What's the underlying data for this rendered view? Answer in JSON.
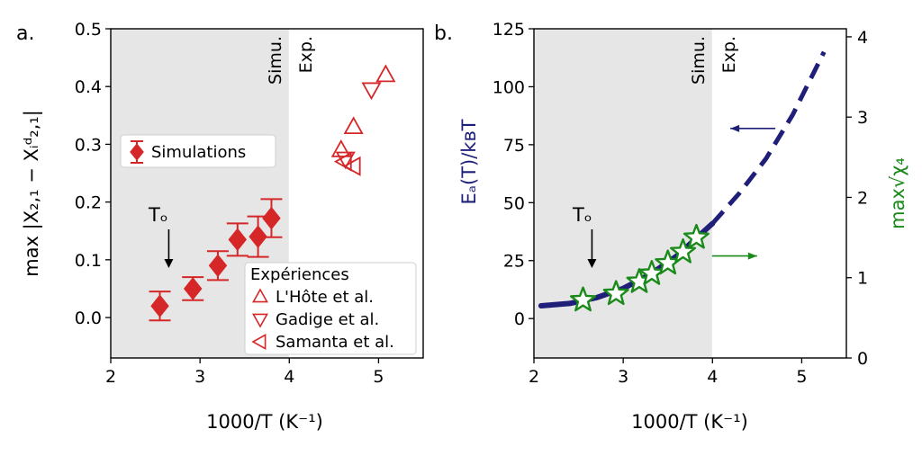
{
  "panels": [
    {
      "label": "a.",
      "xlabel": "1000/T (K⁻¹)",
      "ylabel": "max |X₂,₁ − Xᵢᵈ₂,₁|",
      "region_left": "Simu.",
      "region_right": "Exp.",
      "marker_label": "Tₒ",
      "legend_sim": "Simulations",
      "legend_title": "Expériences",
      "legend_items": [
        "L'Hôte et al.",
        "Gadige et al.",
        "Samanta et al."
      ]
    },
    {
      "label": "b.",
      "xlabel": "1000/T (K⁻¹)",
      "ylabel": "Eₐ(T)/kʙT",
      "ylabel_right": "max√χ₄",
      "region_left": "Simu.",
      "region_right": "Exp.",
      "marker_label": "Tₒ"
    }
  ],
  "colors": {
    "red": "#d62728",
    "navy": "#1f1f7a",
    "green": "#1a8a1a",
    "shade": "#e6e6e6"
  },
  "chart_data": [
    {
      "type": "scatter",
      "xlim": [
        2.0,
        5.5
      ],
      "ylim": [
        -0.07,
        0.5
      ],
      "xticks": [
        2,
        3,
        4,
        5
      ],
      "yticks": [
        0.0,
        0.1,
        0.2,
        0.3,
        0.4,
        0.5
      ],
      "ytick_labels": [
        "0.0",
        "0.1",
        "0.2",
        "0.3",
        "0.4",
        "0.5"
      ],
      "shaded_range": [
        2.0,
        4.0
      ],
      "boundary_x": 4.0,
      "marker_x": 2.65,
      "series": [
        {
          "name": "Simulations",
          "marker": "diamond",
          "x": [
            2.55,
            2.92,
            3.2,
            3.42,
            3.65,
            3.8
          ],
          "y": [
            0.02,
            0.05,
            0.09,
            0.135,
            0.14,
            0.172
          ],
          "err": [
            0.025,
            0.02,
            0.025,
            0.028,
            0.035,
            0.033
          ]
        },
        {
          "name": "L'Hôte et al.",
          "marker": "triangle-up",
          "x": [
            4.58,
            4.72,
            5.08
          ],
          "y": [
            0.29,
            0.33,
            0.42
          ]
        },
        {
          "name": "Gadige et al.",
          "marker": "triangle-down",
          "x": [
            4.63,
            4.92
          ],
          "y": [
            0.275,
            0.395
          ]
        },
        {
          "name": "Samanta et al.",
          "marker": "triangle-left",
          "x": [
            4.62,
            4.72
          ],
          "y": [
            0.27,
            0.262
          ]
        }
      ]
    },
    {
      "type": "line",
      "xlim": [
        2.0,
        5.5
      ],
      "ylim": [
        -17,
        125
      ],
      "y2lim": [
        0,
        4.1
      ],
      "xticks": [
        2,
        3,
        4,
        5
      ],
      "yticks": [
        0,
        25,
        50,
        75,
        100,
        125
      ],
      "y2ticks": [
        0,
        1,
        2,
        3,
        4
      ],
      "shaded_range": [
        2.0,
        4.0
      ],
      "boundary_x": 4.0,
      "marker_x": 2.65,
      "series": [
        {
          "axis": "left",
          "style": "solid-then-dashed",
          "x": [
            2.08,
            2.4,
            2.7,
            3.0,
            3.3,
            3.6,
            3.8,
            4.0,
            4.3,
            4.6,
            4.9,
            5.25
          ],
          "y": [
            5.5,
            6.5,
            9,
            13,
            19,
            27,
            34,
            41,
            54,
            69,
            88,
            115
          ]
        },
        {
          "axis": "right",
          "marker": "star",
          "x": [
            2.55,
            2.92,
            3.18,
            3.32,
            3.5,
            3.67,
            3.82
          ],
          "y": [
            0.72,
            0.8,
            0.95,
            1.05,
            1.18,
            1.32,
            1.5
          ]
        }
      ],
      "arrows": [
        {
          "direction": "left",
          "axis": "left",
          "x": 4.2,
          "y": 82
        },
        {
          "direction": "right",
          "axis": "left",
          "x": 4.5,
          "y": 27
        }
      ]
    }
  ]
}
